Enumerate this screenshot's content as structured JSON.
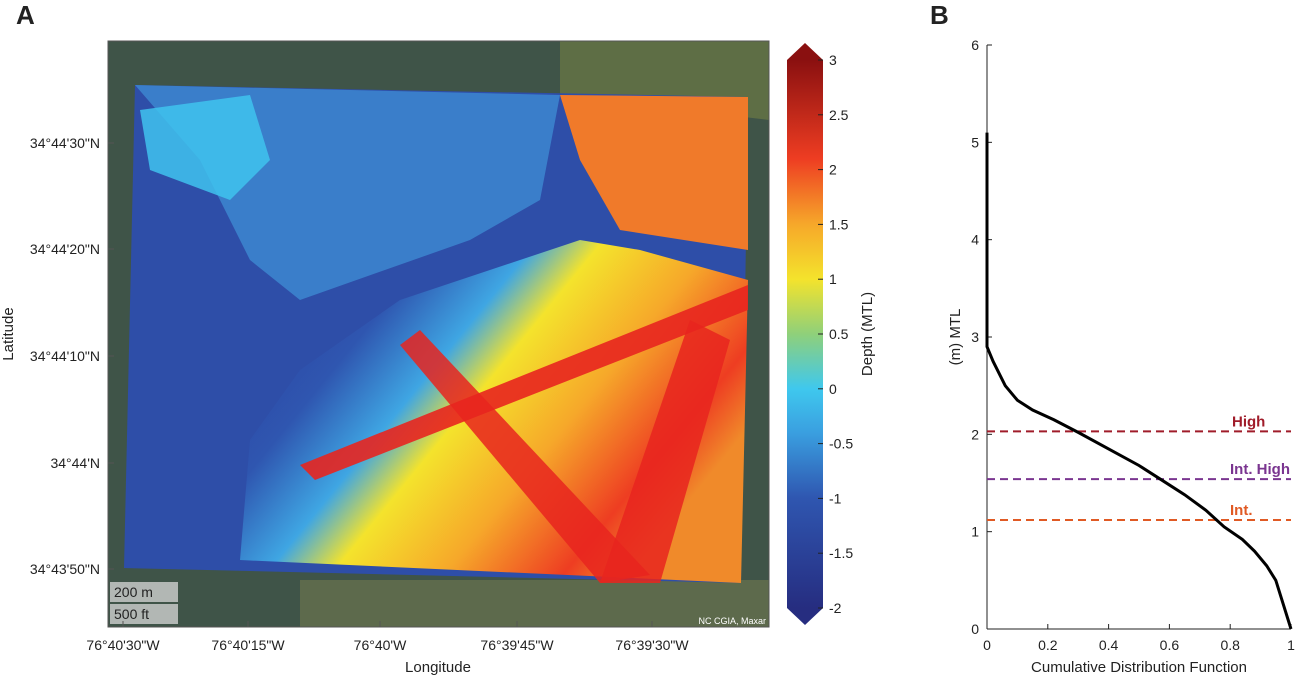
{
  "panels": {
    "a": "A",
    "b": "B"
  },
  "chart_data": [
    {
      "type": "heatmap",
      "xlabel": "Longitude",
      "ylabel": "Latitude",
      "x_ticks": [
        "76°40'30\"W",
        "76°40'15\"W",
        "76°40'W",
        "76°39'45\"W",
        "76°39'30\"W"
      ],
      "y_ticks": [
        "34°44'30\"N",
        "34°44'20\"N",
        "34°44'10\"N",
        "34°44'N",
        "34°43'50\"N"
      ],
      "colorbar": {
        "label": "Depth (MTL)",
        "range": [
          -2,
          3
        ],
        "ticks": [
          "3",
          "2.5",
          "2",
          "1.5",
          "1",
          "0.5",
          "0",
          "-0.5",
          "-1",
          "-1.5",
          "-2"
        ]
      },
      "scalebar": {
        "metric": "200 m",
        "imperial": "500 ft"
      },
      "attribution": "NC CGIA, Maxar",
      "colors": {
        "deep": "#2b3a9a",
        "mid": "#3fc3ee",
        "shallow": "#f4e32c",
        "high": "#e8251f",
        "basemap": "#3f5448"
      }
    },
    {
      "type": "line",
      "xlabel": "Cumulative Distribution Function",
      "ylabel": "(m) MTL",
      "xlim": [
        0,
        1
      ],
      "ylim": [
        0,
        6
      ],
      "x_ticks": [
        "0",
        "0.2",
        "0.4",
        "0.6",
        "0.8",
        "1"
      ],
      "y_ticks": [
        "0",
        "1",
        "2",
        "3",
        "4",
        "5",
        "6"
      ],
      "curve": {
        "x": [
          0,
          0,
          0.02,
          0.06,
          0.1,
          0.15,
          0.22,
          0.3,
          0.4,
          0.5,
          0.58,
          0.65,
          0.72,
          0.78,
          0.84,
          0.88,
          0.92,
          0.95,
          0.97,
          1.0
        ],
        "y": [
          5.1,
          2.9,
          2.75,
          2.5,
          2.35,
          2.25,
          2.15,
          2.02,
          1.85,
          1.68,
          1.52,
          1.38,
          1.22,
          1.05,
          0.92,
          0.8,
          0.65,
          0.5,
          0.3,
          0.0
        ]
      },
      "thresholds": [
        {
          "name": "High",
          "y": 2.03,
          "color": "#a01c2a"
        },
        {
          "name": "Int. High",
          "y": 1.54,
          "color": "#7a3590"
        },
        {
          "name": "Int.",
          "y": 1.12,
          "color": "#e05a24"
        }
      ]
    }
  ]
}
